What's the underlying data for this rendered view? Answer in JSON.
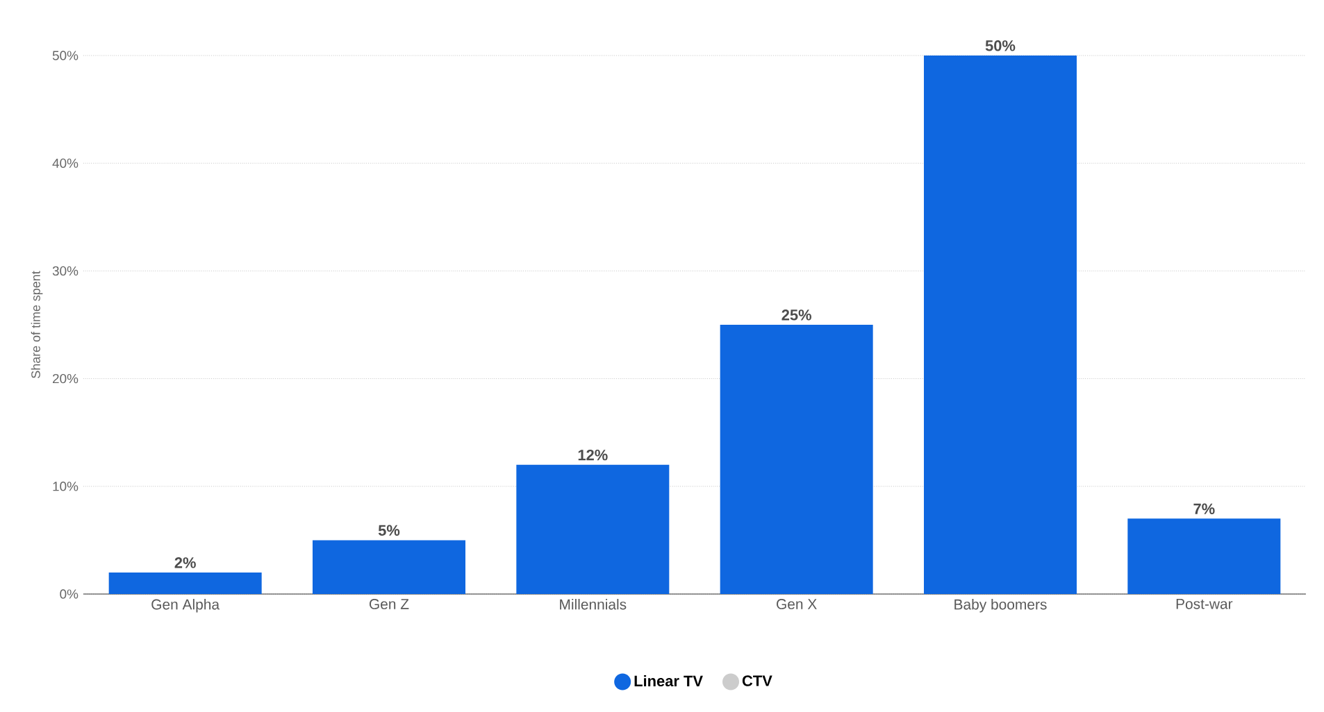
{
  "chart_data": {
    "type": "bar",
    "ylabel": "Share of time spent",
    "categories": [
      "Gen Alpha",
      "Gen Z",
      "Millennials",
      "Gen X",
      "Baby boomers",
      "Post-war"
    ],
    "series": [
      {
        "name": "Linear TV",
        "color": "#0f67e0",
        "values": [
          2,
          5,
          12,
          25,
          50,
          7
        ],
        "value_labels": [
          "2%",
          "5%",
          "12%",
          "25%",
          "50%",
          "7%"
        ]
      },
      {
        "name": "CTV",
        "color": "#cccccc",
        "values": [
          null,
          null,
          null,
          null,
          null,
          null
        ]
      }
    ],
    "ylim": [
      0,
      50
    ],
    "yticks": [
      {
        "value": 0,
        "label": "0%"
      },
      {
        "value": 10,
        "label": "10%"
      },
      {
        "value": 20,
        "label": "20%"
      },
      {
        "value": 30,
        "label": "30%"
      },
      {
        "value": 40,
        "label": "40%"
      },
      {
        "value": 50,
        "label": "50%"
      }
    ],
    "grid": "y",
    "legend": "bottom"
  }
}
